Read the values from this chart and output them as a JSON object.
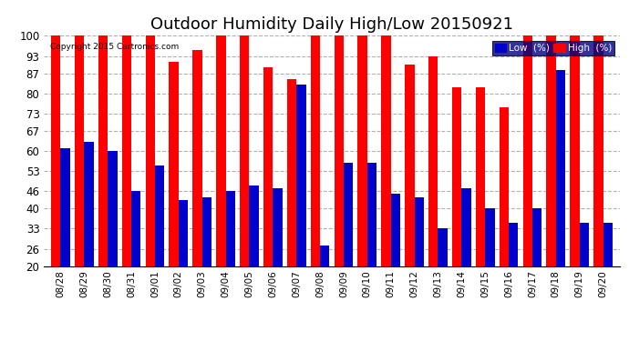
{
  "title": "Outdoor Humidity Daily High/Low 20150921",
  "copyright": "Copyright 2015 Cartronics.com",
  "legend_low": "Low  (%)",
  "legend_high": "High  (%)",
  "dates": [
    "08/28",
    "08/29",
    "08/30",
    "08/31",
    "09/01",
    "09/02",
    "09/03",
    "09/04",
    "09/05",
    "09/06",
    "09/07",
    "09/08",
    "09/09",
    "09/10",
    "09/11",
    "09/12",
    "09/13",
    "09/14",
    "09/15",
    "09/16",
    "09/17",
    "09/18",
    "09/19",
    "09/20"
  ],
  "high": [
    100,
    100,
    100,
    100,
    100,
    91,
    95,
    100,
    100,
    89,
    85,
    100,
    100,
    100,
    100,
    90,
    93,
    82,
    82,
    75,
    100,
    100,
    100,
    100
  ],
  "low": [
    61,
    63,
    60,
    46,
    55,
    43,
    44,
    46,
    48,
    47,
    83,
    27,
    56,
    56,
    45,
    44,
    33,
    47,
    40,
    35,
    40,
    88,
    35,
    35
  ],
  "ymin": 20,
  "ymax": 100,
  "yticks": [
    20,
    26,
    33,
    40,
    46,
    53,
    60,
    67,
    73,
    80,
    87,
    93,
    100
  ],
  "high_color": "#ff0000",
  "low_color": "#0000cc",
  "bg_color": "#ffffff",
  "grid_color": "#b0b0b0",
  "title_fontsize": 13,
  "bar_width": 0.4
}
